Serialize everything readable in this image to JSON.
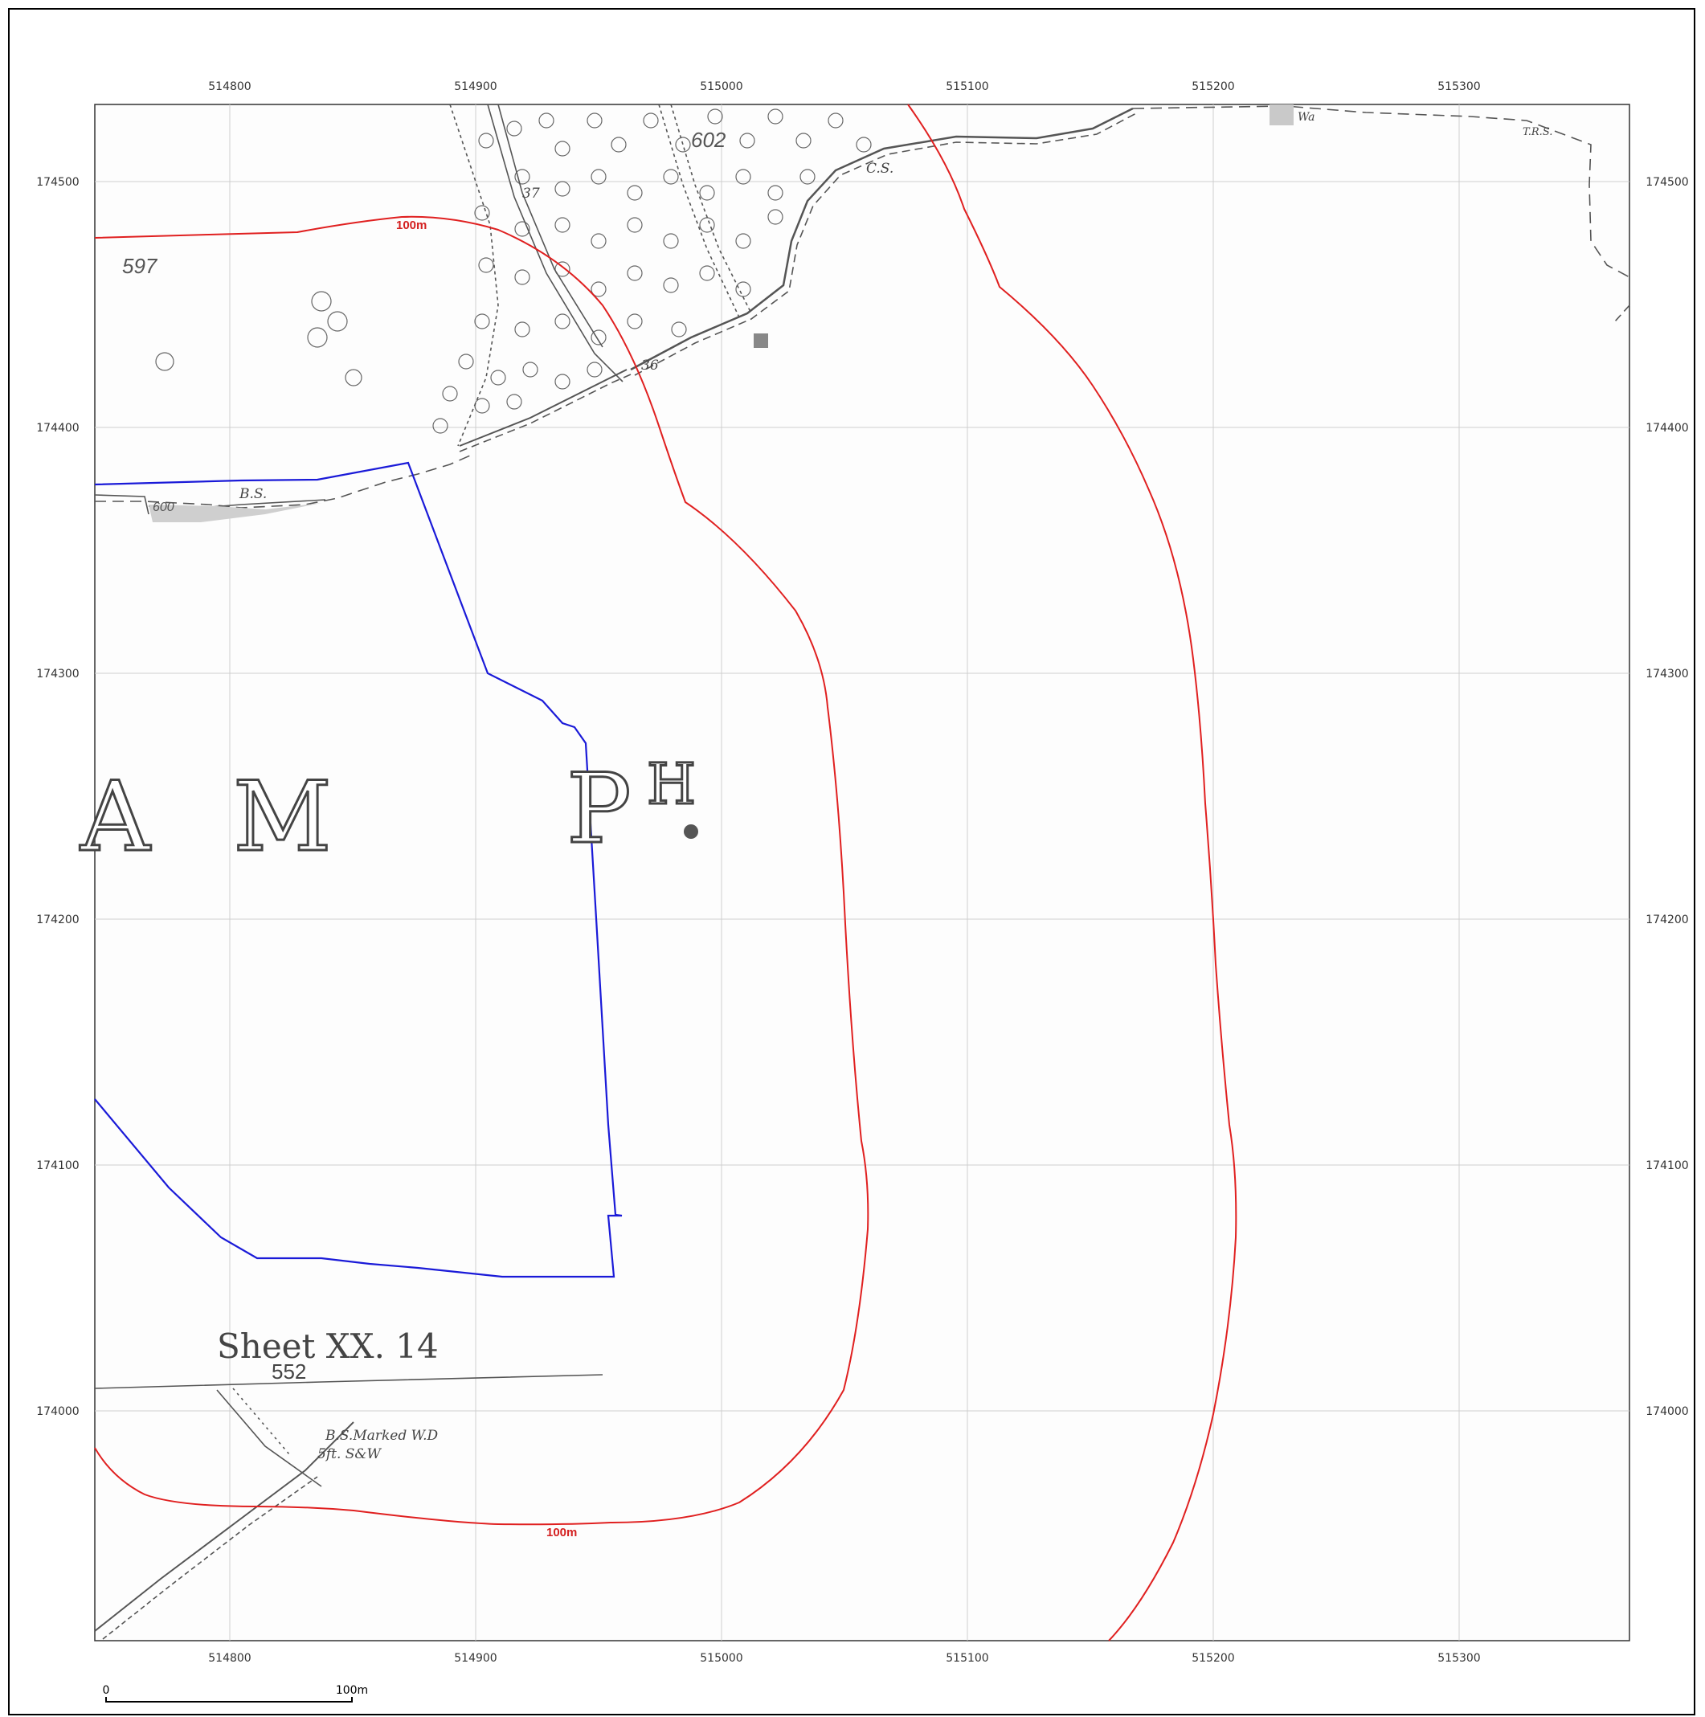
{
  "map": {
    "x_ticks": [
      "514800",
      "514900",
      "515000",
      "515100",
      "515200",
      "515300"
    ],
    "y_ticks": [
      "174500",
      "174400",
      "174300",
      "174200",
      "174100",
      "174000"
    ],
    "contour_labels": [
      "100m",
      "100m"
    ],
    "parcel_numbers": [
      "597",
      "602",
      "600",
      "552"
    ],
    "small_annotations": [
      "37",
      "36",
      "C.S.",
      "B.S.",
      "T.R.S.",
      "Wa"
    ],
    "large_lettering": [
      "A",
      "M",
      "P",
      "H"
    ],
    "sheet_label": "Sheet XX. 14",
    "bs_marked_note_line1": "B.S.Marked W.D",
    "bs_marked_note_line2": "5ft. S&W",
    "scale_bar": {
      "start_label": "0",
      "end_label": "100m"
    },
    "colors": {
      "contour": "#e02020",
      "boundary": "#1a1ad8",
      "grid": "#cfcfcf",
      "basemap_lines": "#555555"
    }
  }
}
